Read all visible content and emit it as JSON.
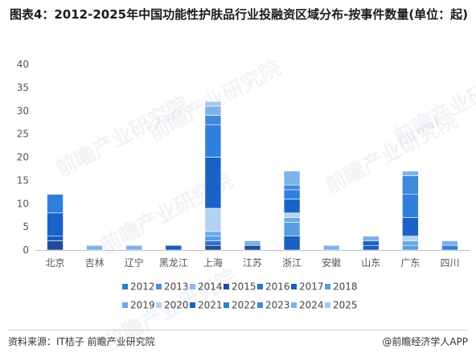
{
  "title": "图表4：2012-2025年中国功能性护肤品行业投融资区域分布-按事件数量(单位：起)",
  "footer": {
    "source": "资料来源：IT桔子 前瞻产业研究院",
    "brand": "@前瞻经济学人APP"
  },
  "watermark": "前瞻产业研究院",
  "chart_data": {
    "type": "bar",
    "stacked": true,
    "title": "图表4：2012-2025年中国功能性护肤品行业投融资区域分布-按事件数量(单位：起)",
    "xlabel": "",
    "ylabel": "",
    "ylim": [
      0,
      40
    ],
    "yticks": [
      "0",
      "5",
      "10",
      "15",
      "20",
      "25",
      "30",
      "35",
      "40"
    ],
    "grid": false,
    "legend_position": "bottom",
    "categories": [
      "北京",
      "吉林",
      "辽宁",
      "黑龙江",
      "上海",
      "江苏",
      "浙江",
      "安徽",
      "山东",
      "广东",
      "四川"
    ],
    "series": [
      {
        "name": "2012",
        "color": "#2e7bd6",
        "values": [
          0,
          0,
          0,
          0,
          0,
          0,
          0,
          0,
          0,
          0,
          0
        ]
      },
      {
        "name": "2013",
        "color": "#4a90d9",
        "values": [
          0,
          0,
          0,
          0,
          0,
          0,
          0,
          0,
          0,
          0,
          0
        ]
      },
      {
        "name": "2014",
        "color": "#8fb9e8",
        "values": [
          0,
          0,
          0,
          0,
          0,
          0,
          0,
          0,
          0,
          0,
          0
        ]
      },
      {
        "name": "2015",
        "color": "#1f4e96",
        "values": [
          2,
          0,
          0,
          0,
          1,
          1,
          0,
          0,
          0,
          0,
          0
        ]
      },
      {
        "name": "2016",
        "color": "#2b73d1",
        "values": [
          0,
          0,
          0,
          0,
          1,
          0,
          0,
          0,
          0,
          0,
          0
        ]
      },
      {
        "name": "2017",
        "color": "#1a5fc0",
        "values": [
          1,
          0,
          0,
          1,
          0,
          0,
          3,
          0,
          1,
          0,
          0
        ]
      },
      {
        "name": "2018",
        "color": "#5a9ee0",
        "values": [
          0,
          0,
          0,
          0,
          1,
          0,
          3,
          0,
          0,
          1,
          0
        ]
      },
      {
        "name": "2019",
        "color": "#6aa8e6",
        "values": [
          0,
          0,
          0,
          0,
          1,
          0,
          1,
          0,
          0,
          1,
          0
        ]
      },
      {
        "name": "2020",
        "color": "#b4d2f2",
        "values": [
          0,
          0,
          0,
          0,
          5,
          0,
          1,
          0,
          0,
          1,
          0
        ]
      },
      {
        "name": "2021",
        "color": "#1b62c8",
        "values": [
          5,
          0,
          0,
          0,
          11,
          0,
          3,
          0,
          1,
          4,
          0
        ]
      },
      {
        "name": "2022",
        "color": "#2f80dc",
        "values": [
          4,
          0,
          0,
          0,
          7,
          0,
          2,
          0,
          0,
          5,
          1
        ]
      },
      {
        "name": "2023",
        "color": "#3f89de",
        "values": [
          0,
          0,
          0,
          0,
          2,
          0,
          1,
          0,
          0,
          4,
          0
        ]
      },
      {
        "name": "2024",
        "color": "#7fb2ea",
        "values": [
          0,
          1,
          1,
          0,
          2,
          1,
          3,
          1,
          1,
          1,
          1
        ]
      },
      {
        "name": "2025",
        "color": "#a6c8f0",
        "values": [
          0,
          0,
          0,
          0,
          1,
          0,
          0,
          0,
          0,
          0,
          0
        ]
      }
    ]
  }
}
